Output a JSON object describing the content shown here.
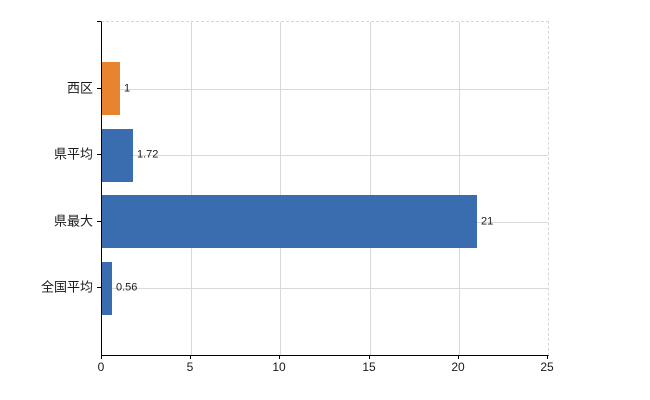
{
  "chart_data": {
    "type": "bar",
    "orientation": "horizontal",
    "title": "",
    "xlabel": "",
    "ylabel": "",
    "categories": [
      "西区",
      "県平均",
      "県最大",
      "全国平均"
    ],
    "values": [
      1,
      1.72,
      21,
      0.56
    ],
    "value_labels": [
      "1",
      "1.72",
      "21",
      "0.56"
    ],
    "bar_colors": [
      "#E8832F",
      "#3A6DB0",
      "#3A6DB0",
      "#3A6DB0"
    ],
    "xlim": [
      0,
      25
    ],
    "x_ticks": [
      0,
      5,
      10,
      15,
      20,
      25
    ],
    "x_tick_labels": [
      "0",
      "5",
      "10",
      "15",
      "20",
      "25"
    ],
    "grid": true,
    "legend": null
  },
  "colors": {
    "orange_bar": "#E8832F",
    "blue_bar": "#3A6DB0",
    "gridline": "#d9d9d9",
    "axis": "#000000",
    "text": "#1a1a1a",
    "background": "#ffffff"
  }
}
